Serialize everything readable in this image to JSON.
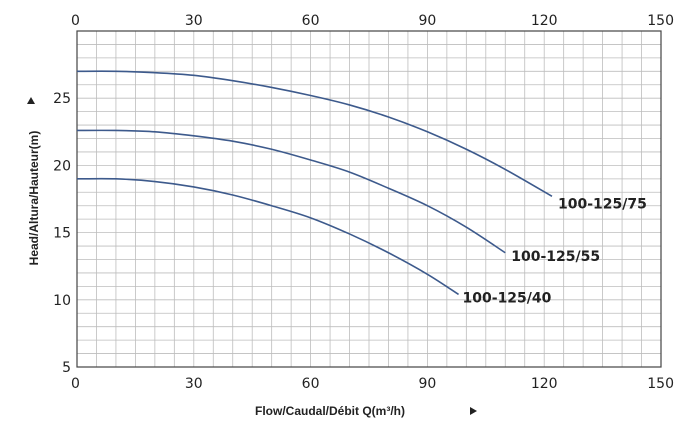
{
  "chart_data": {
    "type": "line",
    "xlabel": "Flow/Caudal/Débit Q(m³/h)",
    "ylabel": "Head/Altura/Hauteur(m)",
    "xlim": [
      0,
      150
    ],
    "ylim": [
      5,
      30
    ],
    "x_ticks": [
      0,
      30,
      60,
      90,
      120,
      150
    ],
    "y_ticks": [
      5,
      10,
      15,
      20,
      25
    ],
    "grid": true,
    "colors": {
      "series": "#3d5a8c",
      "grid": "#bdbdbd",
      "frame": "#444444"
    },
    "series": [
      {
        "name": "100-125/75",
        "x": [
          0,
          10,
          20,
          30,
          40,
          50,
          60,
          70,
          80,
          90,
          100,
          110,
          122
        ],
        "y": [
          27.0,
          27.0,
          26.9,
          26.7,
          26.3,
          25.8,
          25.2,
          24.5,
          23.6,
          22.5,
          21.2,
          19.7,
          17.7
        ]
      },
      {
        "name": "100-125/55",
        "x": [
          0,
          10,
          20,
          30,
          40,
          50,
          60,
          70,
          80,
          90,
          100,
          110
        ],
        "y": [
          22.6,
          22.6,
          22.5,
          22.2,
          21.8,
          21.2,
          20.4,
          19.5,
          18.3,
          17.0,
          15.4,
          13.5
        ]
      },
      {
        "name": "100-125/40",
        "x": [
          0,
          10,
          20,
          30,
          40,
          50,
          60,
          70,
          80,
          90,
          98
        ],
        "y": [
          19.0,
          19.0,
          18.8,
          18.4,
          17.8,
          17.0,
          16.1,
          14.9,
          13.5,
          11.9,
          10.4
        ]
      }
    ]
  }
}
